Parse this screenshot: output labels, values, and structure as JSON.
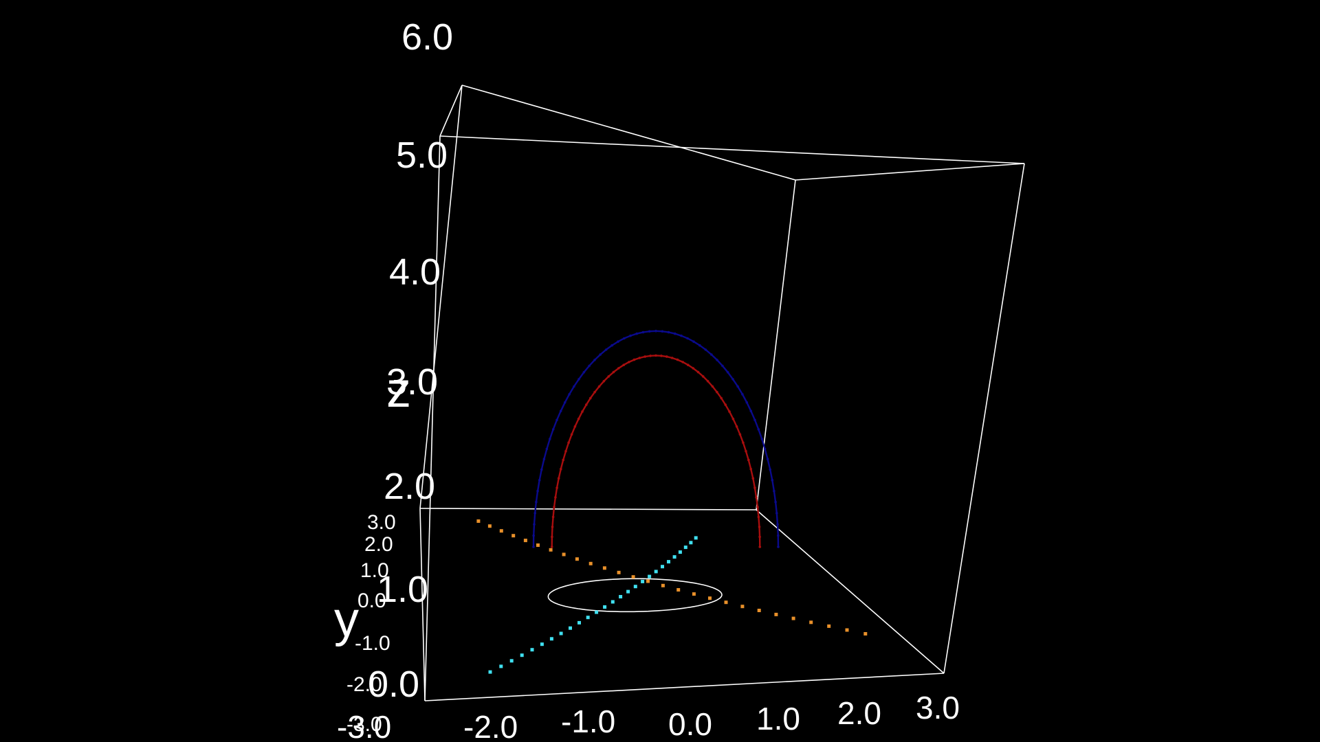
{
  "colors": {
    "background": "#000000",
    "box": "#ffffff",
    "arc_outer": "#0a0a8c",
    "arc_inner": "#a80e0e",
    "ring": "#ffffff",
    "line_cyan": "#40e0f0",
    "line_orange": "#e8902a"
  },
  "chart_data": {
    "type": "scatter",
    "title": "",
    "xlabel": "",
    "ylabel": "y",
    "zlabel": "z",
    "grid": false,
    "xlim": [
      -3.0,
      3.0
    ],
    "ylim": [
      -3.0,
      3.0
    ],
    "zlim": [
      0.0,
      6.0
    ],
    "x_ticks": [
      "-3.0",
      "-2.0",
      "-1.0",
      "0.0",
      "1.0",
      "2.0",
      "3.0"
    ],
    "y_ticks": [
      "-3.0",
      "-2.0",
      "-1.0",
      "0.0",
      "1.0",
      "2.0",
      "3.0"
    ],
    "z_ticks": [
      "0.0",
      "1.0",
      "2.0",
      "3.0",
      "4.0",
      "5.0",
      "6.0"
    ],
    "series": [
      {
        "kind": "arc-points",
        "color_key": "arc_outer",
        "plane_y": 0.0,
        "radius": 1.0,
        "height": 2.2
      },
      {
        "kind": "arc-points",
        "color_key": "arc_inner",
        "plane_y": 0.0,
        "radius": 0.85,
        "height": 1.95
      },
      {
        "kind": "circle",
        "color_key": "ring",
        "z": 0.0,
        "radius": 1.0
      },
      {
        "kind": "dotted-line",
        "color_key": "line_cyan",
        "z": 0.0,
        "from": [
          -2.2,
          -2.2
        ],
        "to": [
          1.5,
          2.0
        ]
      },
      {
        "kind": "dotted-line",
        "color_key": "line_orange",
        "z": 0.0,
        "from": [
          -2.0,
          2.6
        ],
        "to": [
          2.6,
          -1.5
        ]
      }
    ]
  }
}
